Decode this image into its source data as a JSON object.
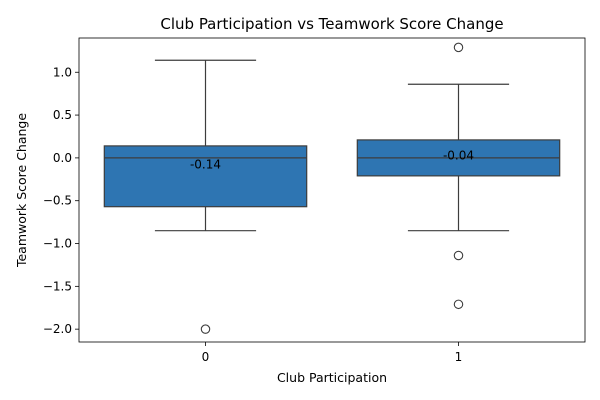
{
  "chart_data": {
    "type": "box",
    "title": "Club Participation vs Teamwork Score Change",
    "xlabel": "Club Participation",
    "ylabel": "Teamwork Score Change",
    "categories": [
      "0",
      "1"
    ],
    "ylim": [
      -2.15,
      1.4
    ],
    "yticks": [
      1.0,
      0.5,
      0.0,
      -0.5,
      -1.0,
      -1.5,
      -2.0
    ],
    "ytick_labels": [
      "1.0",
      "0.5",
      "0.0",
      "−0.5",
      "−1.0",
      "−1.5",
      "−2.0"
    ],
    "grid": false,
    "box_color": "#2e75b2",
    "line_color": "#3d3d3d",
    "boxes": [
      {
        "category": "0",
        "whisker_low": -0.85,
        "q1": -0.57,
        "median": 0.0,
        "q3": 0.14,
        "whisker_high": 1.14,
        "outliers": [
          -2.0
        ],
        "label": "-0.14",
        "label_value": -0.08
      },
      {
        "category": "1",
        "whisker_low": -0.85,
        "q1": -0.21,
        "median": 0.0,
        "q3": 0.21,
        "whisker_high": 0.86,
        "outliers": [
          1.29,
          -1.14,
          -1.71
        ],
        "label": "-0.04",
        "label_value": 0.03
      }
    ]
  }
}
